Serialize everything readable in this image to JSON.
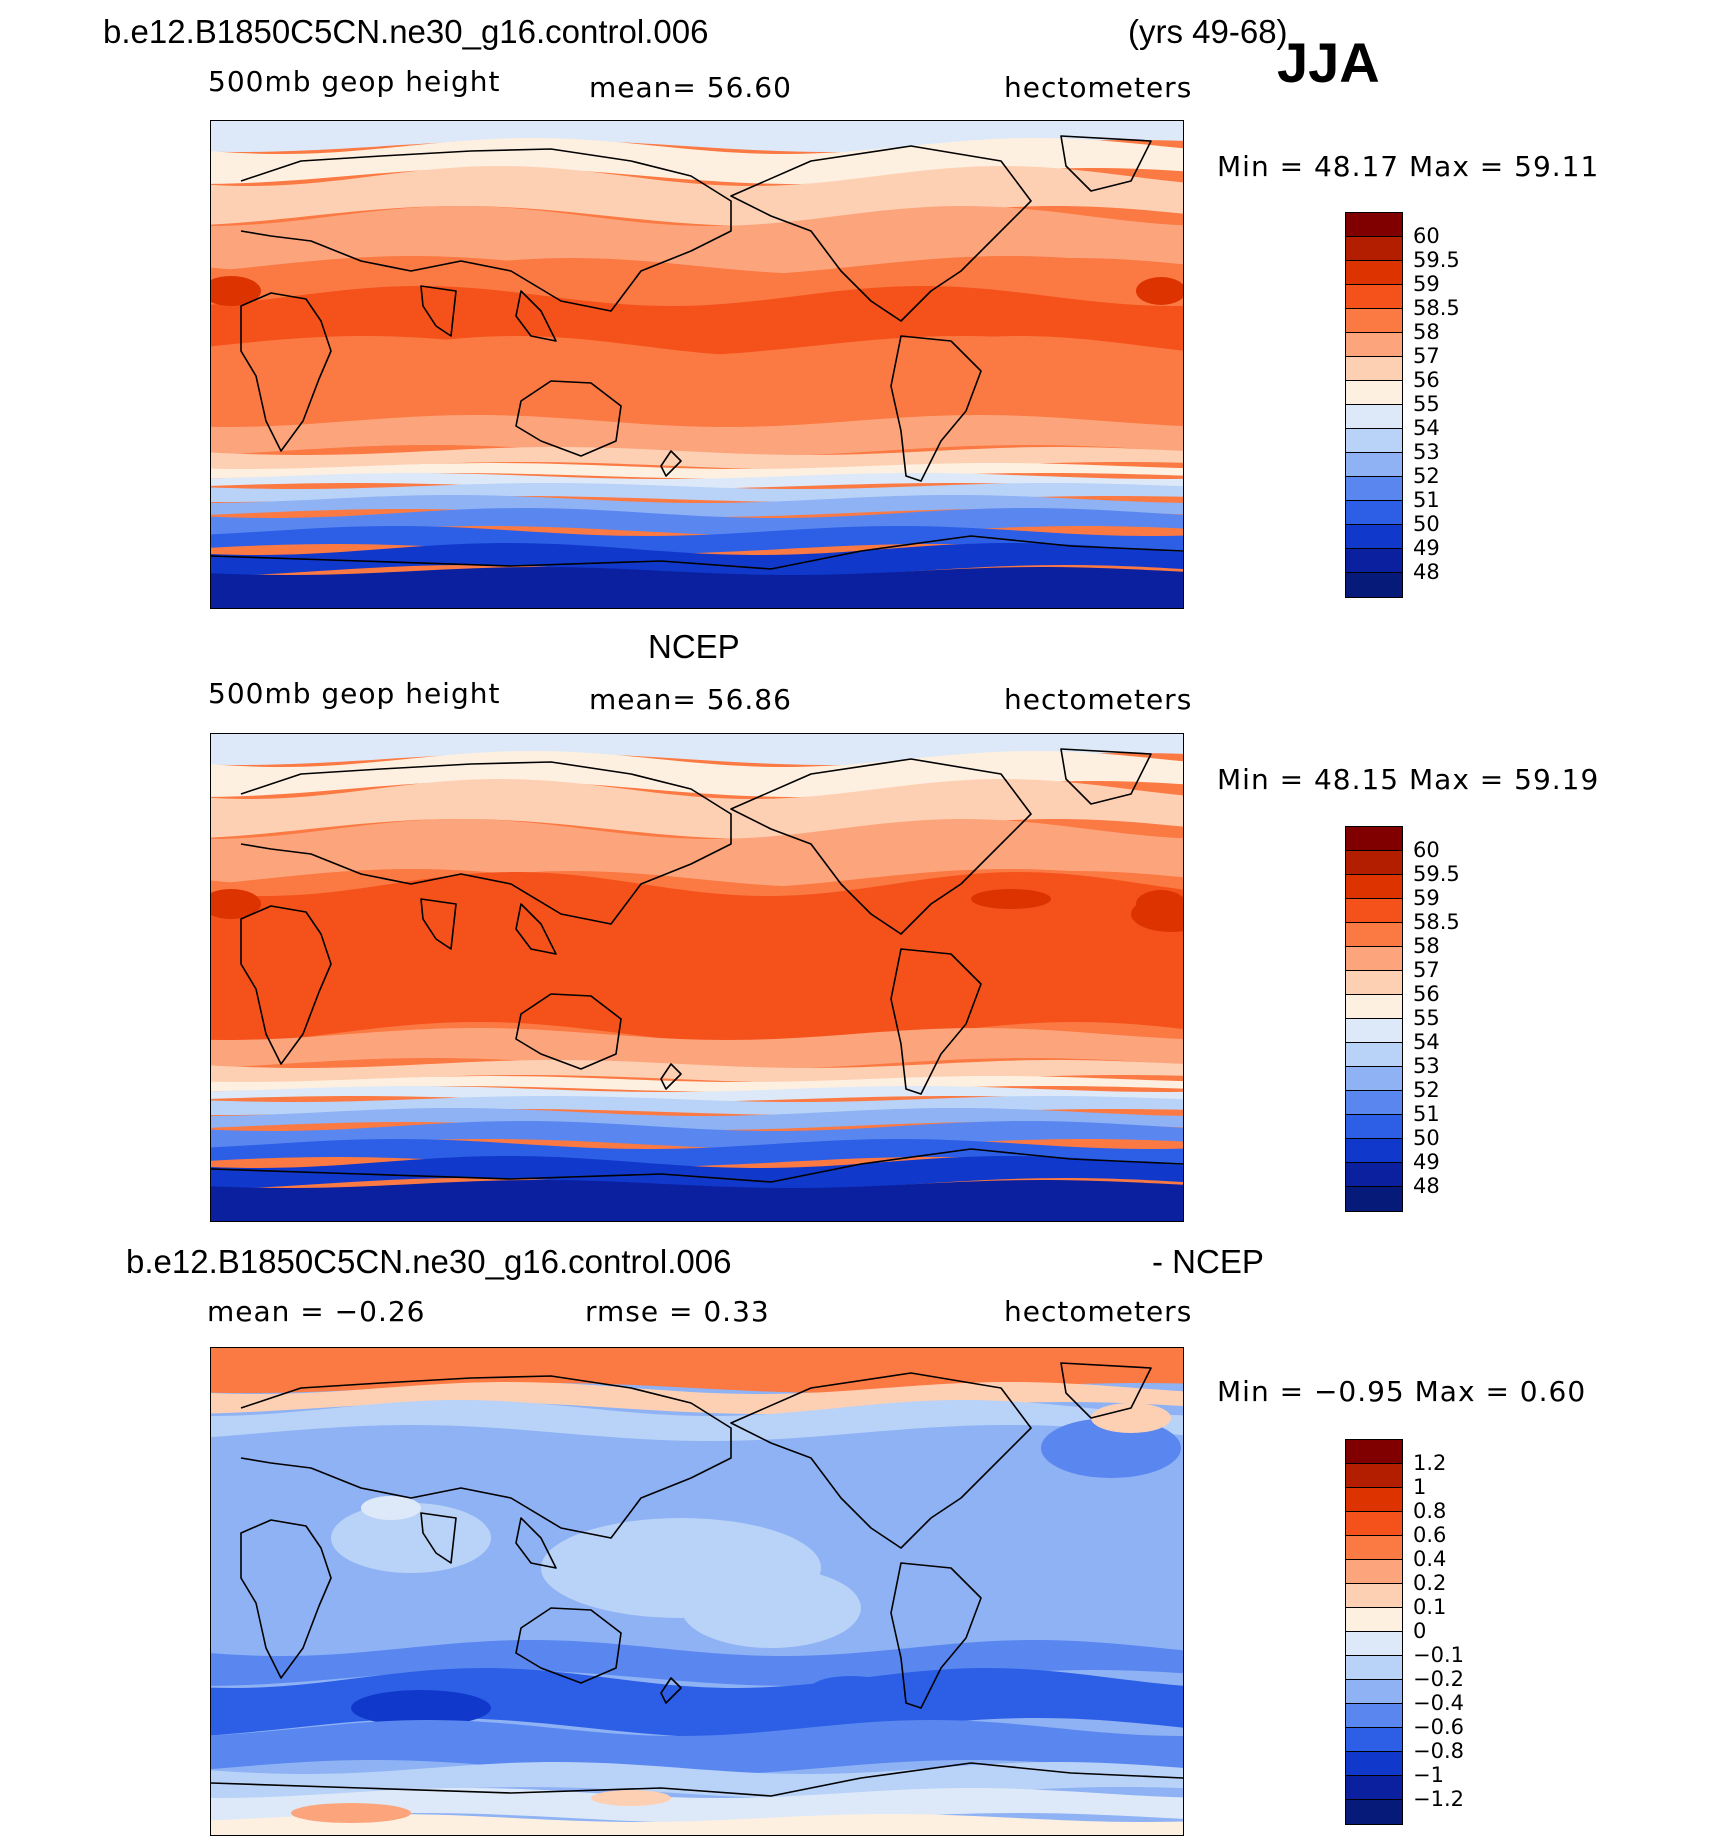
{
  "season": "JJA",
  "years": "(yrs 49-68)",
  "panels": [
    {
      "title": "b.e12.B1850C5CN.ne30_g16.control.006",
      "variable": "500mb geop height",
      "stat1": "mean=   56.60",
      "units": "hectometers",
      "minmax": "Min =   48.17  Max =   59.11",
      "levels": [
        "60",
        "59.5",
        "59",
        "58.5",
        "58",
        "57",
        "56",
        "55",
        "54",
        "53",
        "52",
        "51",
        "50",
        "49",
        "48"
      ]
    },
    {
      "title": "NCEP",
      "variable": "500mb geop height",
      "stat1": "mean=   56.86",
      "units": "hectometers",
      "minmax": "Min =   48.15  Max =   59.19",
      "levels": [
        "60",
        "59.5",
        "59",
        "58.5",
        "58",
        "57",
        "56",
        "55",
        "54",
        "53",
        "52",
        "51",
        "50",
        "49",
        "48"
      ]
    },
    {
      "title": "b.e12.B1850C5CN.ne30_g16.control.006",
      "title_right": "- NCEP",
      "variable": "mean =   −0.26",
      "stat1": "rmse =    0.33",
      "units": "hectometers",
      "minmax": "Min =   −0.95  Max =    0.60",
      "levels": [
        "1.2",
        "1",
        "0.8",
        "0.6",
        "0.4",
        "0.2",
        "0.1",
        "0",
        "−0.1",
        "−0.2",
        "−0.4",
        "−0.6",
        "−0.8",
        "−1",
        "−1.2"
      ]
    }
  ],
  "colors": {
    "palette": [
      "#800000",
      "#b31e00",
      "#dd3300",
      "#f5521b",
      "#fb7943",
      "#fca57c",
      "#fdd0b4",
      "#fef0e0",
      "#dde9f8",
      "#b9d2f7",
      "#8eb2f4",
      "#5a87ef",
      "#2d5fe6",
      "#1039cc",
      "#0a209f",
      "#061a7a"
    ],
    "ocean_lines": "#000000"
  }
}
